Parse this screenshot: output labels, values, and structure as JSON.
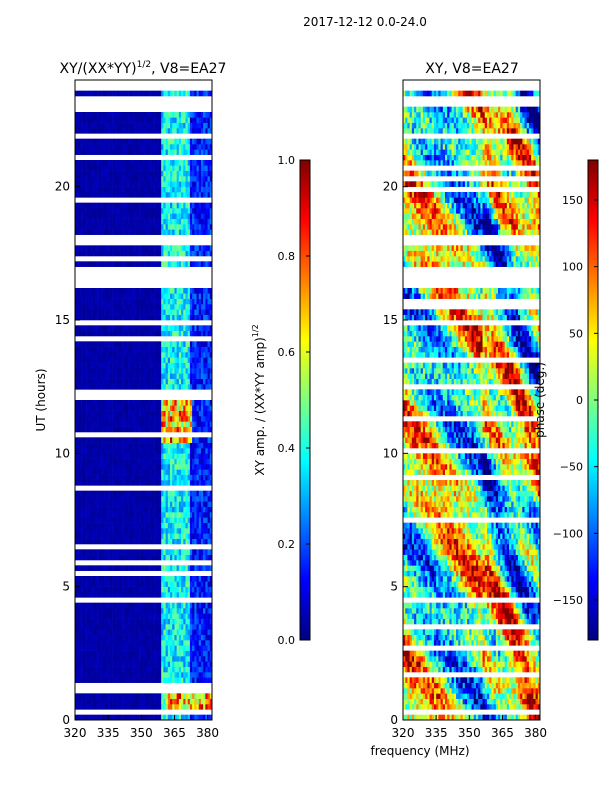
{
  "figure": {
    "suptitle": "2017-12-12 0.0-24.0",
    "shared_xlabel": "frequency (MHz)"
  },
  "colors": {
    "jet": [
      "#00007f",
      "#0000ff",
      "#007fff",
      "#00ffff",
      "#7fff7f",
      "#ffff00",
      "#ff7f00",
      "#ff0000",
      "#7f0000"
    ],
    "masked": "#ffffff"
  },
  "chart_data": [
    {
      "type": "heatmap",
      "title": "XY/(XX*YY)^1/2, V8=EA27",
      "title_main": "XY/(XX*YY)",
      "title_exp": "1/2",
      "title_suffix": ", V8=EA27",
      "xlabel": "",
      "ylabel": "UT (hours)",
      "xlim": [
        320,
        382
      ],
      "ylim": [
        0,
        24
      ],
      "xticks": [
        320,
        335,
        350,
        365,
        380
      ],
      "yticks": [
        0,
        5,
        10,
        15,
        20
      ],
      "colorbar": {
        "label": "XY amp. / (XX*YY amp)^1/2",
        "label_main": "XY amp. / (XX*YY amp)",
        "label_exp": "1/2",
        "range": [
          0.0,
          1.0
        ],
        "ticks": [
          "0.0",
          "0.2",
          "0.4",
          "0.6",
          "0.8",
          "1.0"
        ]
      },
      "masked_ut_ranges": [
        [
          16.3,
          17.0
        ],
        [
          17.9,
          18.2
        ],
        [
          21.8,
          22.1
        ],
        [
          23.0,
          23.3
        ],
        [
          23.6,
          24.0
        ]
      ],
      "features": [
        {
          "x_range": [
            359,
            372
          ],
          "ut_range": [
            0,
            24
          ],
          "level": "elevated"
        },
        {
          "x_range": [
            359,
            373
          ],
          "ut_range": [
            10.3,
            12.2
          ],
          "level": "high"
        },
        {
          "x_range": [
            361,
            382
          ],
          "ut_range": [
            0.4,
            1.0
          ],
          "level": "high"
        }
      ]
    },
    {
      "type": "heatmap",
      "title": "XY, V8=EA27",
      "xlabel": "frequency (MHz)",
      "ylabel": "",
      "xlim": [
        320,
        382
      ],
      "ylim": [
        0,
        24
      ],
      "xticks": [
        320,
        335,
        350,
        365,
        380
      ],
      "yticks": [
        0,
        5,
        10,
        15,
        20
      ],
      "colorbar": {
        "label": "phase (deg.)",
        "range": [
          -180,
          180
        ],
        "ticks": [
          "-150",
          "-100",
          "-50",
          "0",
          "50",
          "100",
          "150"
        ]
      },
      "masked_ut_ranges": [
        [
          16.3,
          17.0
        ],
        [
          17.9,
          18.2
        ],
        [
          21.8,
          22.1
        ],
        [
          23.0,
          23.3
        ],
        [
          23.6,
          24.0
        ]
      ]
    }
  ]
}
